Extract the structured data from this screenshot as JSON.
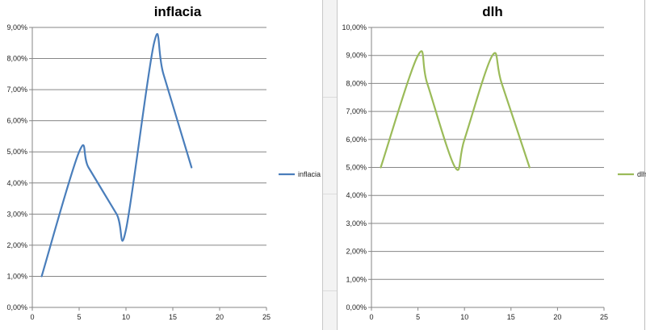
{
  "chart_data": [
    {
      "type": "line",
      "title": "inflacia",
      "xlabel": "",
      "ylabel": "",
      "xlim": [
        0,
        25
      ],
      "ylim": [
        0,
        9
      ],
      "x_ticks": [
        "0",
        "5",
        "10",
        "15",
        "20",
        "25"
      ],
      "y_ticks": [
        "0,00%",
        "1,00%",
        "2,00%",
        "3,00%",
        "4,00%",
        "5,00%",
        "6,00%",
        "7,00%",
        "8,00%",
        "9,00%"
      ],
      "grid": "horizontal",
      "legend_position": "right",
      "series": [
        {
          "name": "inflacia",
          "color": "#4a7ebb",
          "x": [
            1,
            5,
            6,
            9,
            10,
            13,
            14,
            17
          ],
          "y": [
            1.0,
            5.0,
            4.5,
            3.0,
            2.5,
            8.5,
            7.5,
            4.5
          ]
        }
      ]
    },
    {
      "type": "line",
      "title": "dlh",
      "xlabel": "",
      "ylabel": "",
      "xlim": [
        0,
        25
      ],
      "ylim": [
        0,
        10
      ],
      "x_ticks": [
        "0",
        "5",
        "10",
        "15",
        "20",
        "25"
      ],
      "y_ticks": [
        "0,00%",
        "1,00%",
        "2,00%",
        "3,00%",
        "4,00%",
        "5,00%",
        "6,00%",
        "7,00%",
        "8,00%",
        "9,00%",
        "10,00%"
      ],
      "grid": "horizontal",
      "legend_position": "right",
      "series": [
        {
          "name": "dlh",
          "color": "#9bbb59",
          "x": [
            1,
            5,
            6,
            9,
            10,
            13,
            14,
            17
          ],
          "y": [
            5.0,
            9.0,
            8.0,
            5.0,
            6.0,
            9.0,
            8.0,
            5.0
          ]
        }
      ]
    }
  ]
}
